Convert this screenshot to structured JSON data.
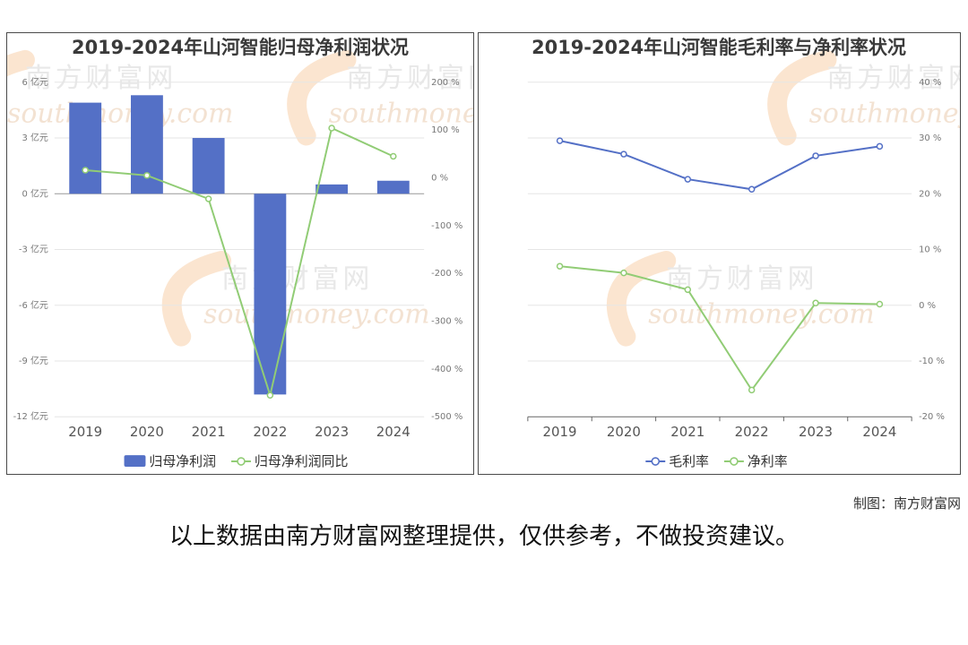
{
  "footer": {
    "credit": "制图：南方财富网",
    "disclaimer": "以上数据由南方财富网整理提供，仅供参考，不做投资建议。"
  },
  "watermark": {
    "text": "南方财富网",
    "sub": "southmoney.com"
  },
  "colors": {
    "bar": "#5470c6",
    "yoy": "#91cc75",
    "gross": "#5470c6",
    "net": "#91cc75",
    "grid": "#e6e6e6"
  },
  "chart_data": [
    {
      "type": "bar",
      "title": "2019-2024年山河智能归母净利润状况",
      "categories": [
        "2019",
        "2020",
        "2021",
        "2022",
        "2023",
        "2024"
      ],
      "series": [
        {
          "name": "归母净利润",
          "type": "bar",
          "axis": "left",
          "values": [
            4.9,
            5.3,
            3.0,
            -10.8,
            0.5,
            0.7
          ]
        },
        {
          "name": "归母净利润同比",
          "type": "line",
          "axis": "right",
          "values": [
            16,
            5,
            -44,
            -455,
            104,
            45
          ]
        }
      ],
      "left_axis": {
        "ticks": [
          "6 亿元",
          "3 亿元",
          "0 亿元",
          "-3 亿元",
          "-6 亿元",
          "-9 亿元",
          "-12 亿元"
        ],
        "ylim": [
          -12,
          6
        ]
      },
      "right_axis": {
        "ticks": [
          "200 %",
          "100 %",
          "0 %",
          "-100 %",
          "-200 %",
          "-300 %",
          "-400 %",
          "-500 %"
        ],
        "ylim": [
          -500,
          200
        ]
      },
      "legend": "bottom"
    },
    {
      "type": "line",
      "title": "2019-2024年山河智能毛利率与净利率状况",
      "categories": [
        "2019",
        "2020",
        "2021",
        "2022",
        "2023",
        "2024"
      ],
      "series": [
        {
          "name": "毛利率",
          "values": [
            29.5,
            27.1,
            22.6,
            20.8,
            26.8,
            28.5
          ]
        },
        {
          "name": "净利率",
          "values": [
            7.0,
            5.8,
            2.8,
            -15.2,
            0.4,
            0.2
          ]
        }
      ],
      "right_axis": {
        "ticks": [
          "40 %",
          "30 %",
          "20 %",
          "10 %",
          "0 %",
          "-10 %",
          "-20 %"
        ],
        "ylim": [
          -20,
          40
        ]
      },
      "legend": "bottom"
    }
  ]
}
